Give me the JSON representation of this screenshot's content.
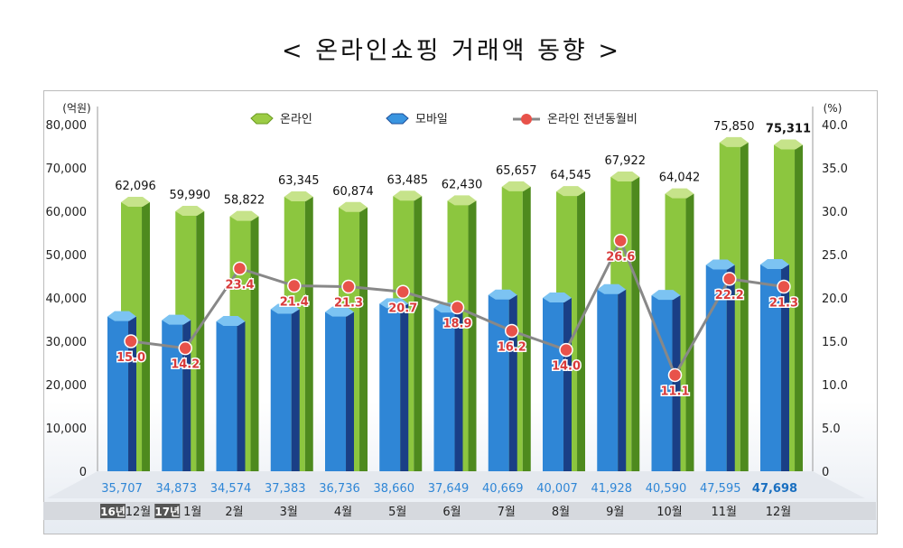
{
  "title": "< 온라인쇼핑 거래액 동향 >",
  "chart_data": {
    "type": "bar+line",
    "title": "< 온라인쇼핑 거래액 동향 >",
    "y_left_label": "(억원)",
    "y_right_label": "(%)",
    "y_left_ticks": [
      "0",
      "10,000",
      "20,000",
      "30,000",
      "40,000",
      "50,000",
      "60,000",
      "70,000",
      "80,000"
    ],
    "y_right_ticks": [
      "0",
      "5.0",
      "10.0",
      "15.0",
      "20.0",
      "25.0",
      "30.0",
      "35.0",
      "40.0"
    ],
    "ylim_left": [
      0,
      80000
    ],
    "ylim_right": [
      0,
      40
    ],
    "legend": [
      "온라인",
      "모바일",
      "온라인 전년동월비"
    ],
    "legend_position": "top-center",
    "year_badges": [
      "16년",
      "17년"
    ],
    "categories": [
      "12월",
      "1월",
      "2월",
      "3월",
      "4월",
      "5월",
      "6월",
      "7월",
      "8월",
      "9월",
      "10월",
      "11월",
      "12월"
    ],
    "series": [
      {
        "name": "온라인",
        "type": "bar",
        "color": "#8cc63f",
        "values": [
          62096,
          59990,
          58822,
          63345,
          60874,
          63485,
          62430,
          65657,
          64545,
          67922,
          64042,
          75850,
          75311
        ],
        "labels": [
          "62,096",
          "59,990",
          "58,822",
          "63,345",
          "60,874",
          "63,485",
          "62,430",
          "65,657",
          "64,545",
          "67,922",
          "64,042",
          "75,850",
          "75,311"
        ]
      },
      {
        "name": "모바일",
        "type": "bar",
        "color": "#2f86d6",
        "values": [
          35707,
          34873,
          34574,
          37383,
          36736,
          38660,
          37649,
          40669,
          40007,
          41928,
          40590,
          47595,
          47698
        ],
        "labels": [
          "35,707",
          "34,873",
          "34,574",
          "37,383",
          "36,736",
          "38,660",
          "37,649",
          "40,669",
          "40,007",
          "41,928",
          "40,590",
          "47,595",
          "47,698"
        ]
      },
      {
        "name": "온라인 전년동월비",
        "type": "line",
        "color": "#888888",
        "marker_color": "#e8524a",
        "values": [
          15.0,
          14.2,
          23.4,
          21.4,
          21.3,
          20.7,
          18.9,
          16.2,
          14.0,
          26.6,
          11.1,
          22.2,
          21.3
        ],
        "labels": [
          "15.0",
          "14.2",
          "23.4",
          "21.4",
          "21.3",
          "20.7",
          "18.9",
          "16.2",
          "14.0",
          "26.6",
          "11.1",
          "22.2",
          "21.3"
        ]
      }
    ]
  }
}
